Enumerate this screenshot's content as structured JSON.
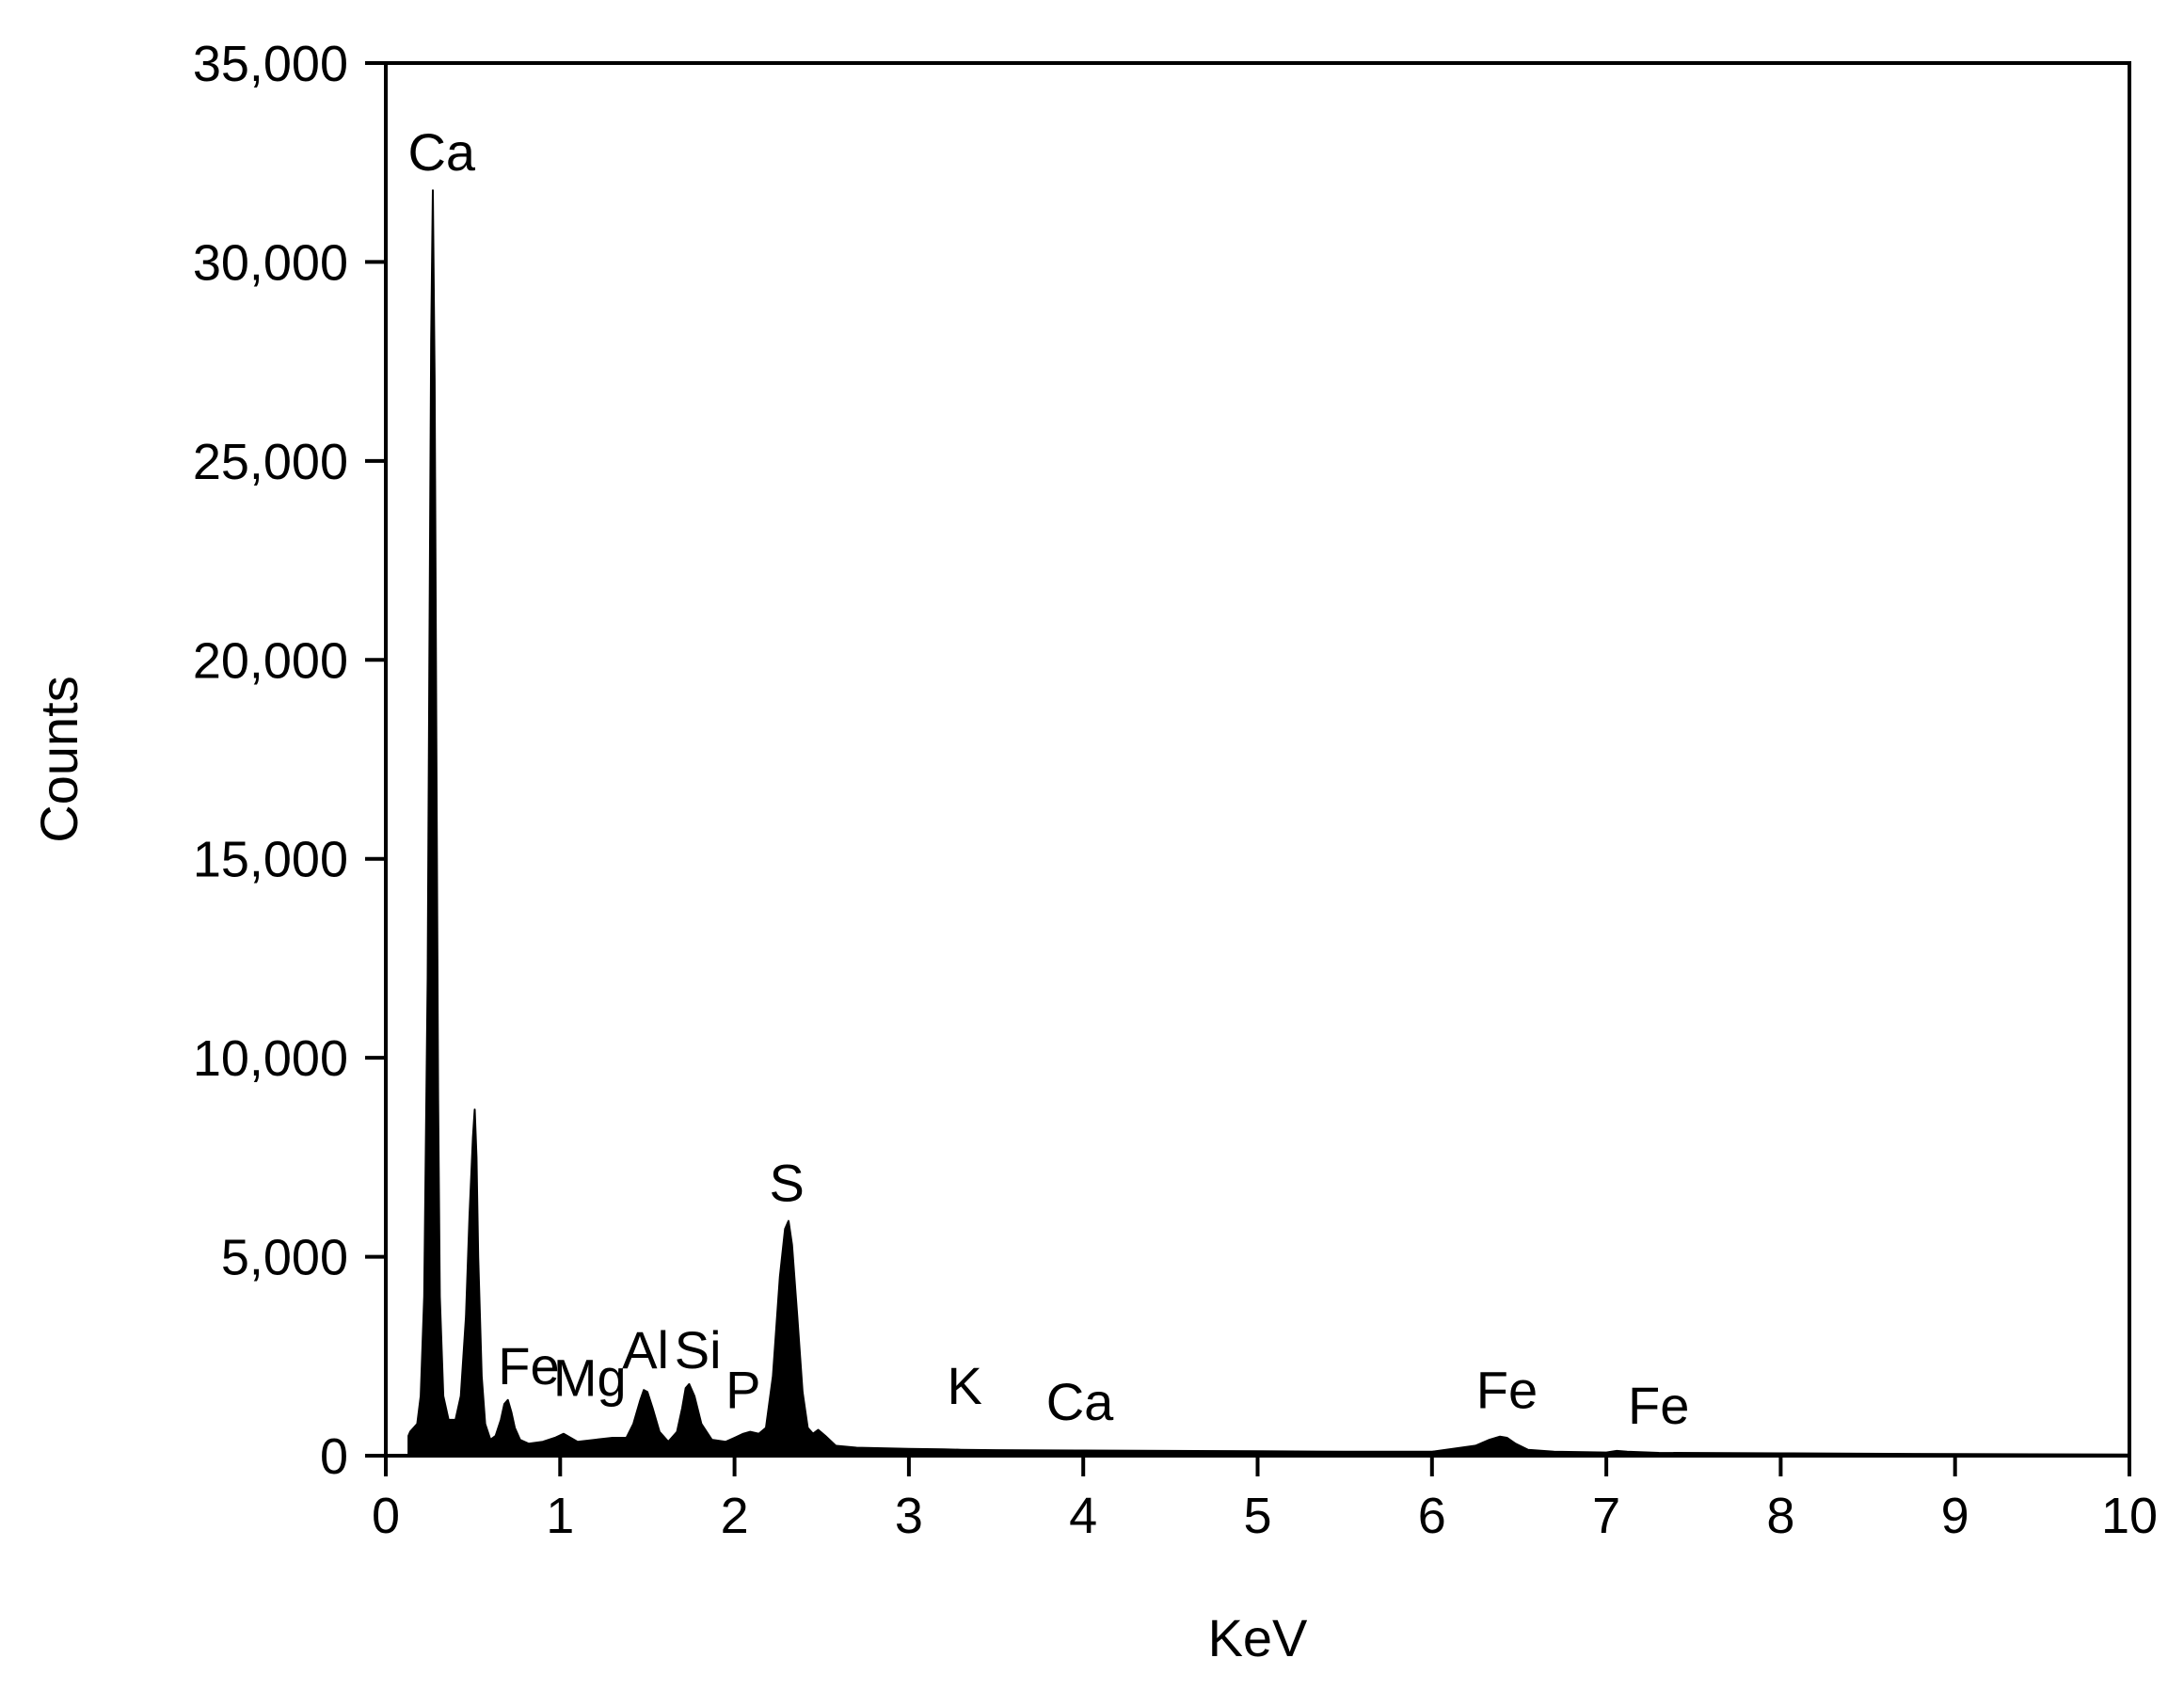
{
  "chart_data": {
    "type": "area",
    "title": "",
    "xlabel": "KeV",
    "ylabel": "Counts",
    "xlim": [
      0,
      10
    ],
    "ylim": [
      0,
      35000
    ],
    "x_ticks": [
      0,
      1,
      2,
      3,
      4,
      5,
      6,
      7,
      8,
      9,
      10
    ],
    "x_tick_labels": [
      "0",
      "1",
      "2",
      "3",
      "4",
      "5",
      "6",
      "7",
      "8",
      "9",
      "10"
    ],
    "y_ticks": [
      0,
      5000,
      10000,
      15000,
      20000,
      25000,
      30000,
      35000
    ],
    "y_tick_labels": [
      "0",
      "5,000",
      "10,000",
      "15,000",
      "20,000",
      "25,000",
      "30,000",
      "35,000"
    ],
    "grid": false,
    "legend": "none",
    "fill_color": "#000000",
    "series": [
      {
        "x": [
          0.13,
          0.14,
          0.18,
          0.2,
          0.22,
          0.24,
          0.25,
          0.26,
          0.27,
          0.28,
          0.29,
          0.3,
          0.31,
          0.33,
          0.36,
          0.4,
          0.43,
          0.46,
          0.48,
          0.5,
          0.51,
          0.52,
          0.53,
          0.55,
          0.57,
          0.6,
          0.63,
          0.66,
          0.68,
          0.7,
          0.72,
          0.74,
          0.77,
          0.82,
          0.9,
          0.97,
          1.02,
          1.06,
          1.1,
          1.2,
          1.3,
          1.38,
          1.42,
          1.46,
          1.48,
          1.5,
          1.53,
          1.57,
          1.62,
          1.67,
          1.7,
          1.72,
          1.74,
          1.77,
          1.81,
          1.87,
          1.95,
          2.0,
          2.05,
          2.09,
          2.14,
          2.18,
          2.22,
          2.26,
          2.29,
          2.31,
          2.33,
          2.36,
          2.39,
          2.42,
          2.45,
          2.48,
          2.52,
          2.58,
          2.7,
          3.0,
          3.2,
          3.3,
          3.5,
          4.0,
          4.5,
          5.0,
          5.5,
          6.0,
          6.25,
          6.33,
          6.39,
          6.43,
          6.48,
          6.55,
          6.7,
          7.0,
          7.06,
          7.12,
          7.3,
          8.0,
          9.0,
          10.0
        ],
        "y": [
          500,
          600,
          800,
          1500,
          4000,
          12000,
          20000,
          28000,
          31800,
          27000,
          18000,
          9000,
          4000,
          1500,
          900,
          900,
          1500,
          3500,
          6000,
          8000,
          8700,
          7500,
          5000,
          2000,
          800,
          400,
          500,
          900,
          1300,
          1400,
          1100,
          700,
          400,
          300,
          350,
          450,
          550,
          450,
          350,
          400,
          450,
          450,
          800,
          1400,
          1650,
          1600,
          1200,
          600,
          350,
          600,
          1200,
          1700,
          1800,
          1500,
          800,
          400,
          350,
          450,
          550,
          600,
          550,
          700,
          2000,
          4500,
          5700,
          5900,
          5300,
          3500,
          1600,
          700,
          550,
          650,
          500,
          250,
          200,
          170,
          160,
          150,
          140,
          130,
          120,
          110,
          100,
          100,
          250,
          400,
          480,
          450,
          300,
          150,
          100,
          80,
          120,
          100,
          70,
          60,
          40,
          30
        ]
      }
    ],
    "annotations": [
      {
        "text": "Ca",
        "x": 0.32,
        "y": 32300
      },
      {
        "text": "Fe",
        "x": 0.82,
        "y": 1800
      },
      {
        "text": "Mg",
        "x": 1.17,
        "y": 1500
      },
      {
        "text": "Al",
        "x": 1.49,
        "y": 2200
      },
      {
        "text": "Si",
        "x": 1.79,
        "y": 2200
      },
      {
        "text": "P",
        "x": 2.05,
        "y": 1200
      },
      {
        "text": "S",
        "x": 2.3,
        "y": 6400
      },
      {
        "text": "K",
        "x": 3.32,
        "y": 1300
      },
      {
        "text": "Ca",
        "x": 3.98,
        "y": 900
      },
      {
        "text": "Fe",
        "x": 6.43,
        "y": 1200
      },
      {
        "text": "Fe",
        "x": 7.3,
        "y": 800
      }
    ]
  }
}
